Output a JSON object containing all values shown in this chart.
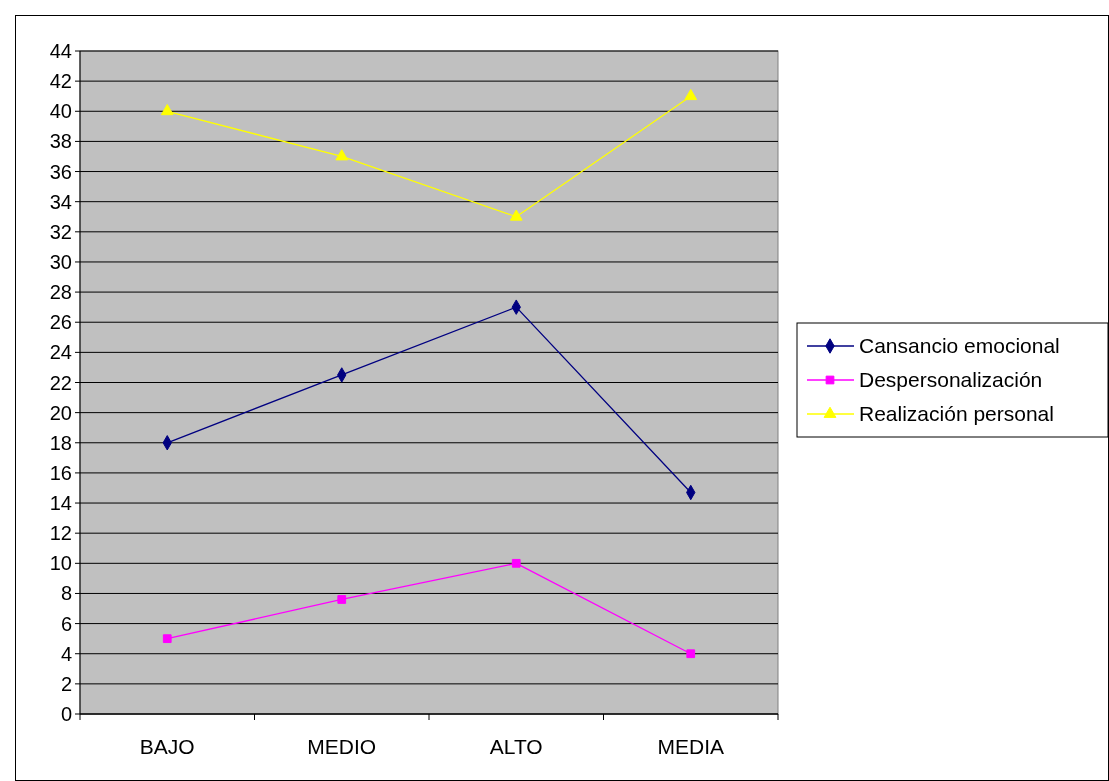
{
  "chart_data": {
    "type": "line",
    "categories": [
      "BAJO",
      "MEDIO",
      "ALTO",
      "MEDIA"
    ],
    "series": [
      {
        "name": "Cansancio emocional",
        "color": "#000080",
        "marker": "diamond",
        "values": [
          18,
          22.5,
          27,
          14.7
        ]
      },
      {
        "name": "Despersonalización",
        "color": "#ff00ff",
        "marker": "square",
        "values": [
          5,
          7.6,
          10,
          4
        ]
      },
      {
        "name": "Realización personal",
        "color": "#ffff00",
        "marker": "triangle",
        "values": [
          40,
          37,
          33,
          41
        ]
      }
    ],
    "ylim": [
      0,
      44
    ],
    "yticks": [
      0,
      2,
      4,
      6,
      8,
      10,
      12,
      14,
      16,
      18,
      20,
      22,
      24,
      26,
      28,
      30,
      32,
      34,
      36,
      38,
      40,
      42,
      44
    ],
    "grid": "y",
    "legend": "right"
  }
}
